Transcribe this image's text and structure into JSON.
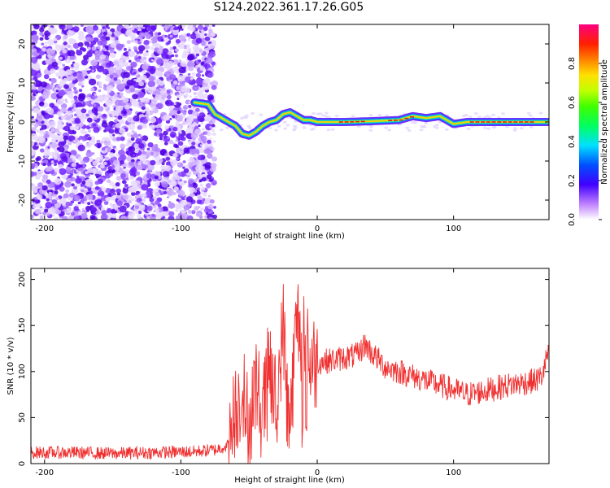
{
  "title": "S124.2022.361.17.26.G05",
  "chart_data": [
    {
      "type": "heatmap",
      "xlabel": "Height of straight line (km)",
      "ylabel": "Frequency (Hz)",
      "xlim": [
        -210,
        170
      ],
      "ylim": [
        -25,
        25
      ],
      "xticks": [
        -200,
        -100,
        0,
        100
      ],
      "yticks": [
        -20,
        -10,
        0,
        10,
        20
      ],
      "colorbar": {
        "label": "Normalized spectral amplitude",
        "range": [
          0,
          1
        ],
        "ticks": [
          "0.0",
          "0.2",
          "0.4",
          "0.6",
          "0.8"
        ]
      },
      "ridge": {
        "x": [
          -90,
          -80,
          -75,
          -70,
          -65,
          -60,
          -55,
          -50,
          -45,
          -40,
          -35,
          -30,
          -25,
          -20,
          -15,
          -10,
          -5,
          0,
          10,
          20,
          40,
          60,
          70,
          80,
          90,
          100,
          110,
          120,
          140,
          160,
          170
        ],
        "y": [
          5,
          4.5,
          2,
          1,
          0,
          -1,
          -3,
          -3.5,
          -2.5,
          -1,
          0,
          0.5,
          2,
          2.5,
          1.5,
          0.5,
          0.5,
          0,
          0,
          0,
          0.2,
          0.5,
          1.5,
          1,
          1.5,
          -0.5,
          0,
          0,
          0,
          0,
          0
        ]
      }
    },
    {
      "type": "line",
      "xlabel": "Height of straight line (km)",
      "ylabel": "SNR (10 * v/v)",
      "xlim": [
        -210,
        170
      ],
      "ylim": [
        0,
        212
      ],
      "xticks": [
        -200,
        -100,
        0,
        100
      ],
      "yticks": [
        0,
        50,
        100,
        150,
        200
      ],
      "series": [
        {
          "color": "#f03030",
          "x": [
            -210,
            -180,
            -150,
            -120,
            -90,
            -75,
            -65,
            -60,
            -55,
            -50,
            -45,
            -40,
            -35,
            -30,
            -25,
            -20,
            -15,
            -10,
            -5,
            0,
            10,
            20,
            30,
            35,
            40,
            50,
            60,
            80,
            100,
            110,
            120,
            140,
            160,
            165,
            170
          ],
          "y": [
            12,
            12,
            11,
            12,
            13,
            15,
            20,
            60,
            80,
            40,
            90,
            50,
            110,
            60,
            150,
            40,
            160,
            130,
            110,
            110,
            112,
            115,
            118,
            130,
            120,
            105,
            100,
            90,
            80,
            75,
            78,
            85,
            90,
            95,
            125
          ]
        }
      ]
    }
  ]
}
